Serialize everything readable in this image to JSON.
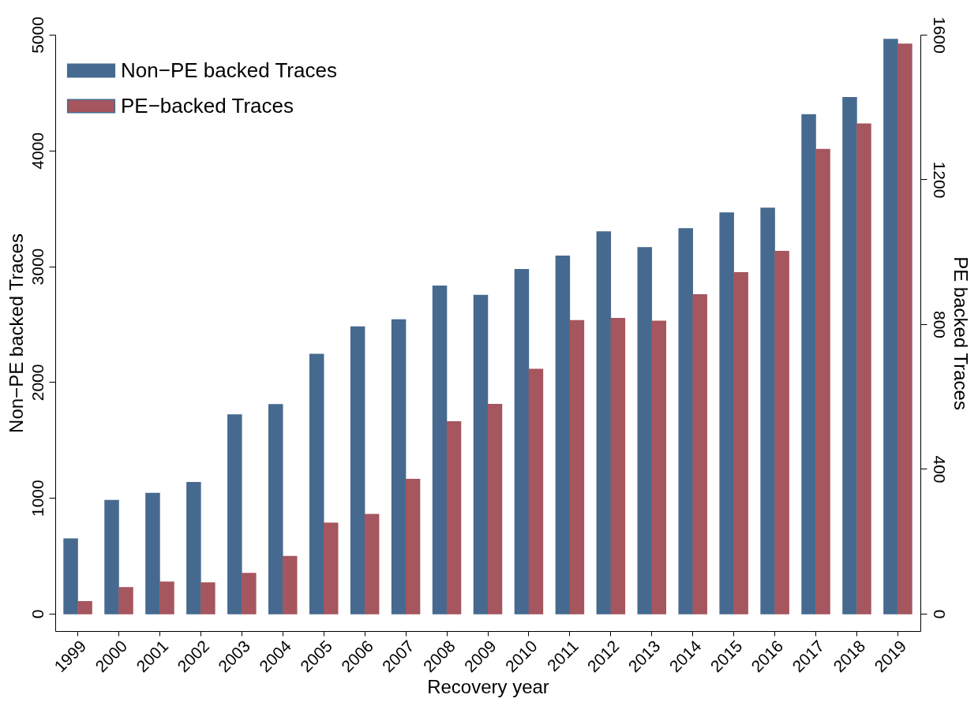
{
  "chart_data": {
    "type": "bar",
    "xlabel": "Recovery year",
    "ylabel": "Non−PE backed Traces",
    "y2label": "PE backed Traces",
    "categories": [
      "1999",
      "2000",
      "2001",
      "2002",
      "2003",
      "2004",
      "2005",
      "2006",
      "2007",
      "2008",
      "2009",
      "2010",
      "2011",
      "2012",
      "2013",
      "2014",
      "2015",
      "2016",
      "2017",
      "2018",
      "2019"
    ],
    "series": [
      {
        "name": "Non−PE backed Traces",
        "color": "#466a8f",
        "values": [
          645,
          977,
          1038,
          1133,
          1716,
          1805,
          2239,
          2476,
          2537,
          2829,
          2748,
          2972,
          3087,
          3297,
          3161,
          3324,
          3460,
          3501,
          4308,
          4457,
          4959
        ]
      },
      {
        "name": "PE−backed Traces",
        "color": "#a5565e",
        "axis": "y2",
        "values": [
          33,
          72,
          87,
          85,
          111,
          158,
          250,
          274,
          371,
          530,
          578,
          675,
          810,
          816,
          808,
          881,
          942,
          1001,
          1283,
          1353,
          1574
        ]
      }
    ],
    "ylim": [
      -150,
      5000
    ],
    "yticks": [
      0,
      1000,
      2000,
      3000,
      4000,
      5000
    ],
    "y2lim": [
      -48,
      1600
    ],
    "y2ticks": [
      0,
      400,
      800,
      1200,
      1600
    ],
    "grid": false,
    "legend": "top left"
  }
}
